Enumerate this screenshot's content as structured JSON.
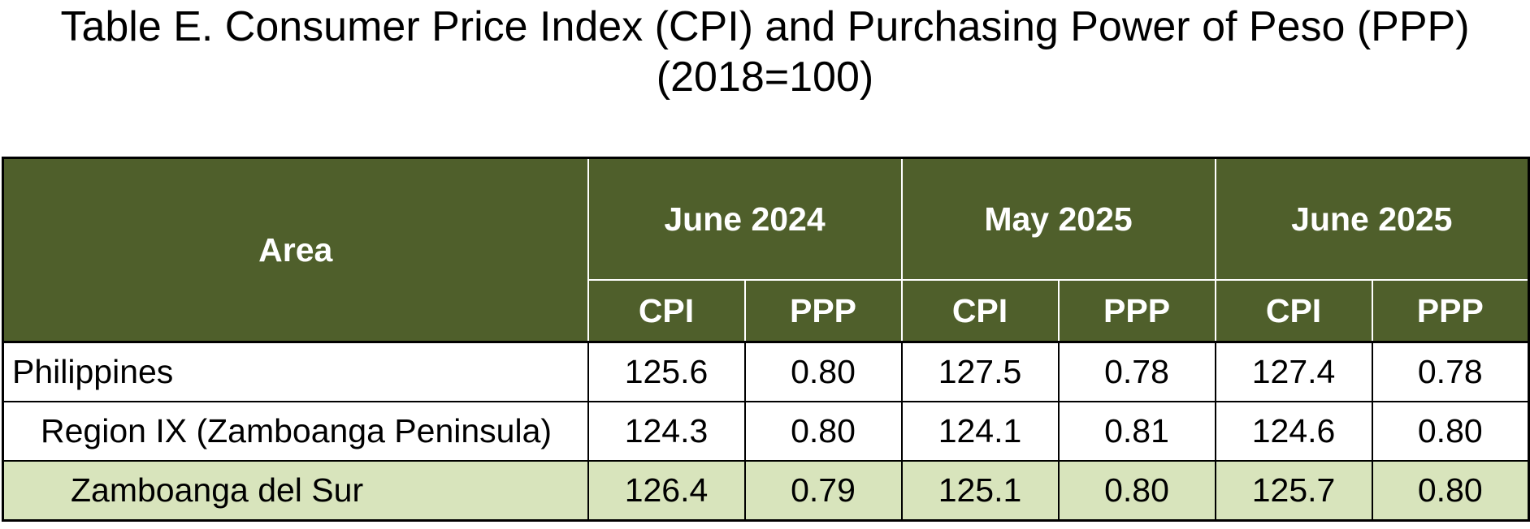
{
  "title": {
    "line1": "Table E. Consumer Price Index (CPI) and Purchasing Power of Peso (PPP)",
    "line2": "(2018=100)"
  },
  "colors": {
    "header_bg": "#4f5f2b",
    "header_text": "#ffffff",
    "highlight_row_bg": "#d8e4bc"
  },
  "table": {
    "area_header": "Area",
    "periods": [
      "June 2024",
      "May 2025",
      "June 2025"
    ],
    "subheaders": [
      "CPI",
      "PPP",
      "CPI",
      "PPP",
      "CPI",
      "PPP"
    ],
    "rows": [
      {
        "area": "Philippines",
        "values": [
          "125.6",
          "0.80",
          "127.5",
          "0.78",
          "127.4",
          "0.78"
        ]
      },
      {
        "area": "Region IX (Zamboanga Peninsula)",
        "values": [
          "124.3",
          "0.80",
          "124.1",
          "0.81",
          "124.6",
          "0.80"
        ]
      },
      {
        "area": "Zamboanga del Sur",
        "values": [
          "126.4",
          "0.79",
          "125.1",
          "0.80",
          "125.7",
          "0.80"
        ]
      }
    ]
  }
}
